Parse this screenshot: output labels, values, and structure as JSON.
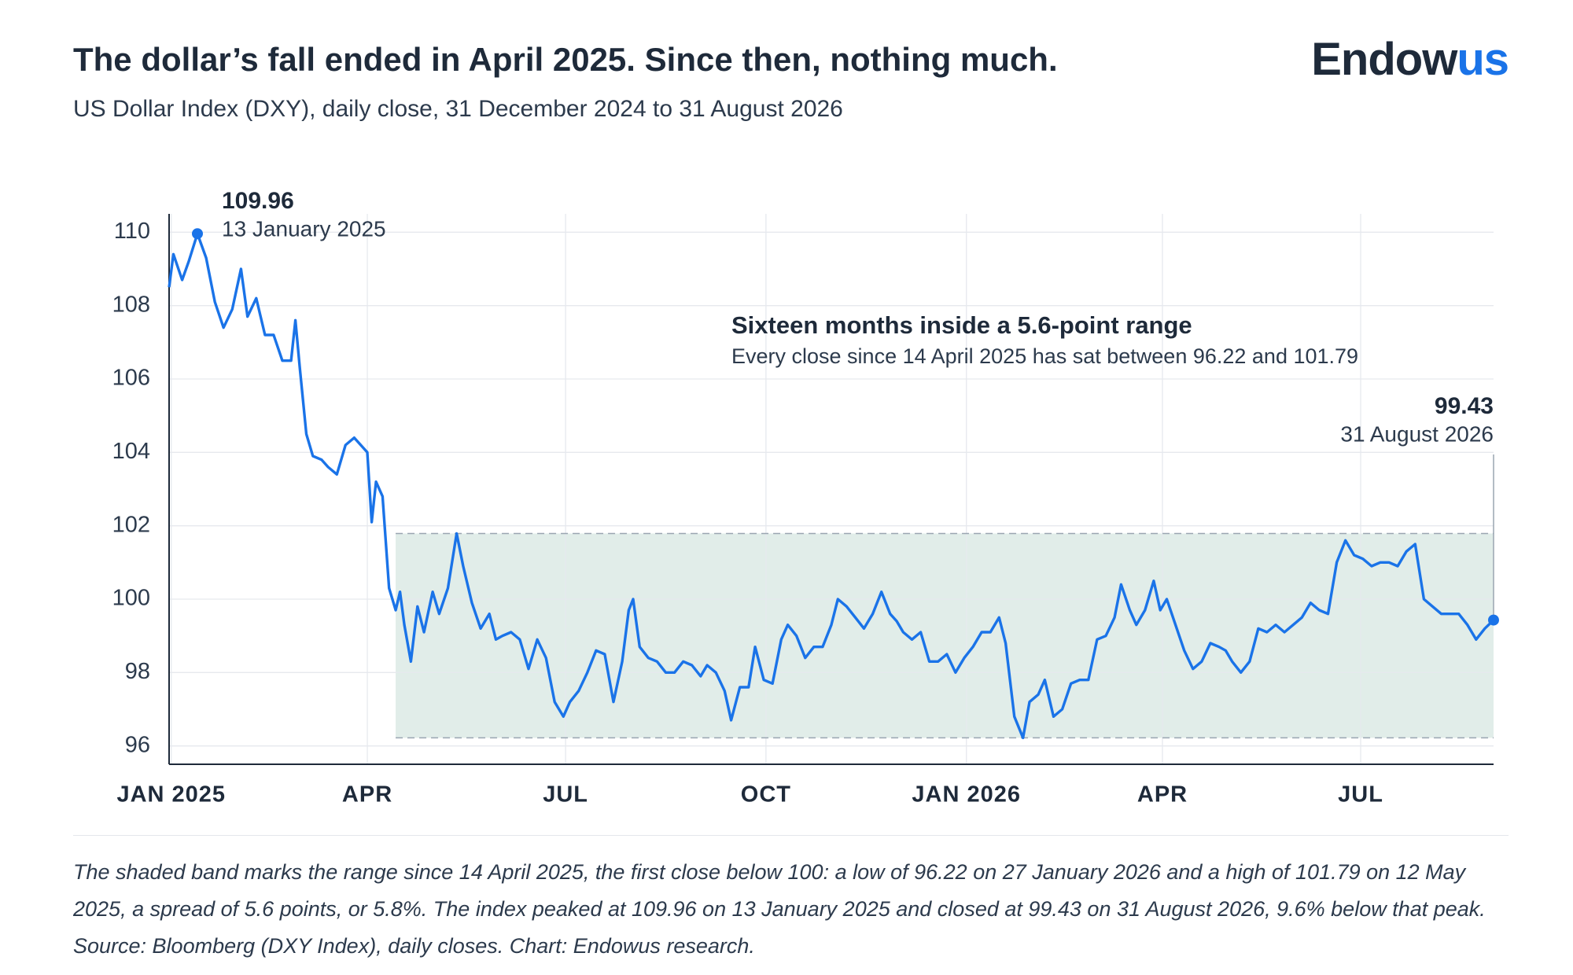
{
  "chart_data": {
    "type": "line",
    "title": "The dollar’s fall ended in April 2025. Since then, nothing much.",
    "subtitle": "US Dollar Index (DXY), daily close, 31 December 2024 to 31 August 2026",
    "brand": {
      "dark": "Endow",
      "accent": "us"
    },
    "color": "#1a73e8",
    "grid": true,
    "xlim": [
      "2024-12-31",
      "2026-08-31"
    ],
    "xticks": [
      {
        "value": "2025-01-01",
        "label": "JAN 2025"
      },
      {
        "value": "2025-04-01",
        "label": "APR"
      },
      {
        "value": "2025-07-01",
        "label": "JUL"
      },
      {
        "value": "2025-10-01",
        "label": "OCT"
      },
      {
        "value": "2026-01-01",
        "label": "JAN 2026"
      },
      {
        "value": "2026-04-01",
        "label": "APR"
      },
      {
        "value": "2026-07-01",
        "label": "JUL"
      }
    ],
    "ylim": [
      95.5,
      110.5
    ],
    "yticks": [
      96,
      98,
      100,
      102,
      104,
      106,
      108,
      110
    ],
    "x": [
      "2024-12-31",
      "2025-01-02",
      "2025-01-06",
      "2025-01-09",
      "2025-01-13",
      "2025-01-17",
      "2025-01-21",
      "2025-01-25",
      "2025-01-29",
      "2025-02-02",
      "2025-02-05",
      "2025-02-09",
      "2025-02-13",
      "2025-02-17",
      "2025-02-21",
      "2025-02-25",
      "2025-02-27",
      "2025-03-01",
      "2025-03-04",
      "2025-03-07",
      "2025-03-11",
      "2025-03-14",
      "2025-03-18",
      "2025-03-22",
      "2025-03-26",
      "2025-03-29",
      "2025-04-01",
      "2025-04-03",
      "2025-04-05",
      "2025-04-08",
      "2025-04-11",
      "2025-04-14",
      "2025-04-16",
      "2025-04-18",
      "2025-04-21",
      "2025-04-24",
      "2025-04-27",
      "2025-05-01",
      "2025-05-04",
      "2025-05-08",
      "2025-05-12",
      "2025-05-15",
      "2025-05-19",
      "2025-05-23",
      "2025-05-27",
      "2025-05-30",
      "2025-06-02",
      "2025-06-06",
      "2025-06-10",
      "2025-06-14",
      "2025-06-18",
      "2025-06-22",
      "2025-06-26",
      "2025-06-30",
      "2025-07-03",
      "2025-07-07",
      "2025-07-11",
      "2025-07-15",
      "2025-07-19",
      "2025-07-23",
      "2025-07-27",
      "2025-07-30",
      "2025-08-01",
      "2025-08-04",
      "2025-08-08",
      "2025-08-12",
      "2025-08-16",
      "2025-08-20",
      "2025-08-24",
      "2025-08-28",
      "2025-09-01",
      "2025-09-04",
      "2025-09-08",
      "2025-09-12",
      "2025-09-15",
      "2025-09-19",
      "2025-09-23",
      "2025-09-26",
      "2025-09-30",
      "2025-10-04",
      "2025-10-08",
      "2025-10-11",
      "2025-10-15",
      "2025-10-19",
      "2025-10-23",
      "2025-10-27",
      "2025-10-31",
      "2025-11-03",
      "2025-11-07",
      "2025-11-11",
      "2025-11-15",
      "2025-11-19",
      "2025-11-23",
      "2025-11-27",
      "2025-11-30",
      "2025-12-03",
      "2025-12-07",
      "2025-12-11",
      "2025-12-15",
      "2025-12-19",
      "2025-12-23",
      "2025-12-27",
      "2025-12-31",
      "2026-01-04",
      "2026-01-08",
      "2026-01-12",
      "2026-01-16",
      "2026-01-19",
      "2026-01-23",
      "2026-01-27",
      "2026-01-30",
      "2026-02-03",
      "2026-02-06",
      "2026-02-10",
      "2026-02-14",
      "2026-02-18",
      "2026-02-22",
      "2026-02-26",
      "2026-03-02",
      "2026-03-06",
      "2026-03-10",
      "2026-03-13",
      "2026-03-17",
      "2026-03-20",
      "2026-03-24",
      "2026-03-28",
      "2026-03-31",
      "2026-04-03",
      "2026-04-07",
      "2026-04-11",
      "2026-04-15",
      "2026-04-19",
      "2026-04-23",
      "2026-04-27",
      "2026-04-30",
      "2026-05-03",
      "2026-05-07",
      "2026-05-11",
      "2026-05-15",
      "2026-05-19",
      "2026-05-23",
      "2026-05-27",
      "2026-05-31",
      "2026-06-04",
      "2026-06-08",
      "2026-06-12",
      "2026-06-16",
      "2026-06-20",
      "2026-06-24",
      "2026-06-28",
      "2026-07-02",
      "2026-07-06",
      "2026-07-10",
      "2026-07-14",
      "2026-07-18",
      "2026-07-22",
      "2026-07-26",
      "2026-07-30",
      "2026-08-03",
      "2026-08-07",
      "2026-08-11",
      "2026-08-15",
      "2026-08-19",
      "2026-08-23",
      "2026-08-27",
      "2026-08-31"
    ],
    "values": [
      108.5,
      109.4,
      108.7,
      109.2,
      109.96,
      109.3,
      108.1,
      107.4,
      107.9,
      109.0,
      107.7,
      108.2,
      107.2,
      107.2,
      106.5,
      106.5,
      107.6,
      106.3,
      104.5,
      103.9,
      103.8,
      103.6,
      103.4,
      104.2,
      104.4,
      104.2,
      104.0,
      102.1,
      103.2,
      102.8,
      100.3,
      99.7,
      100.2,
      99.3,
      98.3,
      99.8,
      99.1,
      100.2,
      99.6,
      100.3,
      101.79,
      100.9,
      99.9,
      99.2,
      99.6,
      98.9,
      99.0,
      99.1,
      98.9,
      98.1,
      98.9,
      98.4,
      97.2,
      96.8,
      97.2,
      97.5,
      98.0,
      98.6,
      98.5,
      97.2,
      98.3,
      99.7,
      100.0,
      98.7,
      98.4,
      98.3,
      98.0,
      98.0,
      98.3,
      98.2,
      97.9,
      98.2,
      98.0,
      97.5,
      96.7,
      97.6,
      97.6,
      98.7,
      97.8,
      97.7,
      98.9,
      99.3,
      99.0,
      98.4,
      98.7,
      98.7,
      99.3,
      100.0,
      99.8,
      99.5,
      99.2,
      99.6,
      100.2,
      99.6,
      99.4,
      99.1,
      98.9,
      99.1,
      98.3,
      98.3,
      98.5,
      98.0,
      98.4,
      98.7,
      99.1,
      99.1,
      99.5,
      98.8,
      96.8,
      96.22,
      97.2,
      97.4,
      97.8,
      96.8,
      97.0,
      97.7,
      97.8,
      97.8,
      98.9,
      99.0,
      99.5,
      100.4,
      99.7,
      99.3,
      99.7,
      100.5,
      99.7,
      100.0,
      99.3,
      98.6,
      98.1,
      98.3,
      98.8,
      98.7,
      98.6,
      98.3,
      98.0,
      98.3,
      99.2,
      99.1,
      99.3,
      99.1,
      99.3,
      99.5,
      99.9,
      99.7,
      99.6,
      101.0,
      101.6,
      101.2,
      101.1,
      100.9,
      101.0,
      101.0,
      100.9,
      101.3,
      101.5,
      100.0,
      99.8,
      99.6,
      99.6,
      99.6,
      99.3,
      98.9,
      99.2,
      99.43
    ],
    "peak": {
      "x": "2025-01-13",
      "value": 109.96,
      "label": "13 January 2025"
    },
    "last": {
      "x": "2026-08-31",
      "value": 99.43,
      "label": "31 August 2026"
    },
    "band": {
      "start": "2025-04-14",
      "low": 96.22,
      "high": 101.79,
      "fill": "#e1ede9",
      "title": "Sixteen months inside a 5.6-point range",
      "note": "Every close since 14 April 2025 has sat between 96.22 and 101.79"
    },
    "footnote": "The shaded band marks the range since 14 April 2025, the first close below 100: a low of 96.22 on 27 January 2026 and a high of 101.79 on 12 May 2025, a spread of 5.6 points, or 5.8%. The index peaked at 109.96 on 13 January 2025 and closed at 99.43 on 31 August 2026, 9.6% below that peak. Source: Bloomberg (DXY Index), daily closes. Chart: Endowus research."
  }
}
